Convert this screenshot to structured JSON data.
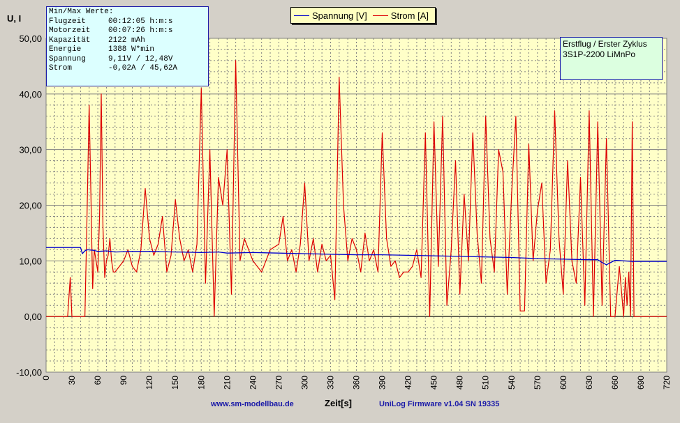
{
  "chart_data": {
    "type": "line",
    "ylabel": "U, I",
    "xlabel": "Zeit[s]",
    "xlim": [
      0,
      720
    ],
    "ylim": [
      -10,
      50
    ],
    "x_ticks": [
      "0",
      "30",
      "60",
      "90",
      "120",
      "150",
      "180",
      "210",
      "240",
      "270",
      "300",
      "330",
      "360",
      "390",
      "420",
      "450",
      "480",
      "510",
      "540",
      "570",
      "600",
      "630",
      "660",
      "690",
      "720"
    ],
    "y_ticks": [
      "50,00",
      "40,00",
      "30,00",
      "20,00",
      "10,00",
      "0,00",
      "-10,00"
    ],
    "grid": true,
    "legend_position": "top-center",
    "series": [
      {
        "name": "Spannung [V]",
        "color": "#0000cc",
        "x": [
          0,
          40,
          42,
          45,
          48,
          55,
          60,
          70,
          75,
          80,
          100,
          120,
          150,
          180,
          200,
          210,
          240,
          270,
          300,
          330,
          360,
          390,
          420,
          450,
          480,
          510,
          540,
          570,
          600,
          630,
          640,
          645,
          650,
          660,
          670,
          680,
          690,
          720
        ],
        "y": [
          12.4,
          12.4,
          11.3,
          11.8,
          12.0,
          11.9,
          11.7,
          11.8,
          11.7,
          11.6,
          11.7,
          11.7,
          11.6,
          11.5,
          11.6,
          11.4,
          11.5,
          11.4,
          11.3,
          11.2,
          11.1,
          11.1,
          11.0,
          10.9,
          10.8,
          10.7,
          10.6,
          10.4,
          10.3,
          10.2,
          10.2,
          9.7,
          9.3,
          10.1,
          10.0,
          9.9,
          9.9,
          9.9
        ]
      },
      {
        "name": "Strom [A]",
        "color": "#dd0000",
        "x": [
          0,
          25,
          28,
          30,
          45,
          47,
          50,
          52,
          54,
          56,
          58,
          60,
          62,
          64,
          66,
          68,
          70,
          72,
          74,
          76,
          78,
          80,
          85,
          90,
          95,
          100,
          105,
          110,
          115,
          120,
          125,
          130,
          135,
          140,
          145,
          150,
          155,
          160,
          165,
          170,
          175,
          180,
          185,
          190,
          195,
          200,
          205,
          210,
          215,
          220,
          225,
          230,
          240,
          250,
          260,
          270,
          275,
          280,
          285,
          290,
          295,
          300,
          305,
          310,
          315,
          320,
          325,
          330,
          335,
          340,
          345,
          350,
          355,
          360,
          365,
          370,
          375,
          380,
          385,
          390,
          395,
          400,
          405,
          410,
          415,
          420,
          425,
          430,
          435,
          440,
          445,
          450,
          455,
          460,
          465,
          470,
          475,
          480,
          485,
          490,
          495,
          500,
          505,
          510,
          515,
          520,
          525,
          530,
          535,
          540,
          545,
          550,
          555,
          560,
          565,
          570,
          575,
          580,
          585,
          590,
          595,
          600,
          605,
          610,
          615,
          620,
          625,
          630,
          635,
          640,
          645,
          650,
          655,
          660,
          665,
          670,
          672,
          674,
          676,
          678,
          680,
          682,
          685,
          690,
          720
        ],
        "y": [
          0,
          0,
          7,
          0,
          0,
          14,
          38,
          22,
          5,
          12,
          10,
          8,
          18,
          40,
          16,
          7,
          10,
          11,
          14,
          10,
          8,
          8,
          9,
          10,
          12,
          9,
          8,
          12,
          23,
          14,
          11,
          13,
          18,
          8,
          11,
          21,
          14,
          10,
          12,
          8,
          13,
          41,
          6,
          30,
          0,
          25,
          20,
          30,
          4,
          46,
          10,
          14,
          10,
          8,
          12,
          13,
          18,
          10,
          12,
          8,
          13,
          24,
          10,
          14,
          8,
          13,
          10,
          11,
          3,
          43,
          20,
          10,
          14,
          12,
          8,
          15,
          10,
          12,
          8,
          33,
          14,
          9,
          10,
          7,
          8,
          8,
          9,
          12,
          7,
          33,
          0,
          35,
          9,
          36,
          2,
          12,
          28,
          4,
          22,
          10,
          33,
          15,
          6,
          36,
          14,
          8,
          30,
          26,
          4,
          22,
          36,
          1,
          1,
          31,
          10,
          19,
          24,
          6,
          12,
          37,
          14,
          4,
          28,
          10,
          6,
          25,
          2,
          37,
          0,
          35,
          2,
          32,
          0,
          0,
          9,
          0,
          7,
          2,
          8,
          0,
          35,
          0,
          0,
          0,
          0
        ]
      }
    ]
  },
  "info_box": {
    "header": "Min/Max Werte:",
    "rows": [
      {
        "label": "Flugzeit",
        "value": "00:12:05 h:m:s"
      },
      {
        "label": "Motorzeit",
        "value": "00:07:26 h:m:s"
      },
      {
        "label": "Kapazität",
        "value": "2122 mAh"
      },
      {
        "label": "Energie",
        "value": "1388 W*min"
      },
      {
        "label": "Spannung",
        "value": "9,11V / 12,48V"
      },
      {
        "label": "Strom",
        "value": "-0,02A / 45,62A"
      }
    ]
  },
  "note_box": {
    "line1": "Erstflug / Erster Zyklus",
    "line2": "3S1P-2200 LiMnPo"
  },
  "footer": {
    "website": "www.sm-modellbau.de",
    "firmware": "UniLog Firmware v1.04 SN 19335"
  },
  "colors": {
    "plot_bg": "#ffffc8",
    "frame_bg": "#d4d0c8",
    "grid": "#808080"
  }
}
